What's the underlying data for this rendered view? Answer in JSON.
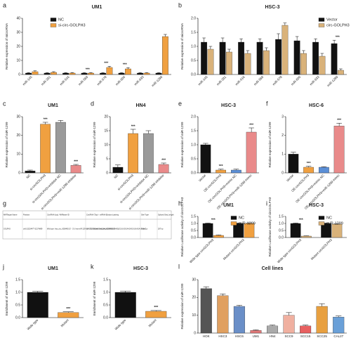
{
  "chart_data": [
    {
      "type": "bar",
      "panel": "a",
      "title": "UM1",
      "ylabel": "Relative  expression of microRNA",
      "categories": [
        "miR-145",
        "miR-331",
        "miR-516",
        "miR-569",
        "miR-578",
        "miR-600",
        "miR-633",
        "miR-1299"
      ],
      "series": [
        {
          "name": "NC",
          "color": "#111111",
          "values": [
            1,
            1,
            1,
            1,
            1,
            1,
            1,
            1
          ],
          "errors": [
            0.3,
            0.3,
            0.3,
            0.3,
            0.3,
            0.3,
            0.3,
            0.3
          ]
        },
        {
          "name": "si-circ-GOLPH3",
          "color": "#f0a040",
          "values": [
            2,
            1.5,
            1,
            1,
            5,
            4,
            1,
            27
          ],
          "errors": [
            0.6,
            0.5,
            0.4,
            0.3,
            0.8,
            0.9,
            0.3,
            1.5
          ]
        }
      ],
      "significance": [
        null,
        null,
        null,
        "***",
        "***",
        "***",
        null,
        null
      ],
      "ylim": [
        0,
        40
      ],
      "yticks": [
        0,
        10,
        20,
        30,
        40
      ],
      "legend": "top-left"
    },
    {
      "type": "bar",
      "panel": "b",
      "title": "HSC-3",
      "ylabel": "Relative  expression of microRNA",
      "categories": [
        "miR-145",
        "miR-331",
        "miR-516",
        "miR-569",
        "miR-578",
        "miR-600",
        "miR-633",
        "miR-1299"
      ],
      "series": [
        {
          "name": "Vector",
          "color": "#111111",
          "values": [
            1.15,
            1.15,
            1.15,
            1.15,
            1.25,
            1.2,
            1.15,
            1.1
          ],
          "errors": [
            0.15,
            0.15,
            0.12,
            0.12,
            0.2,
            0.15,
            0.12,
            0.12
          ]
        },
        {
          "name": "circ-GOLPH3",
          "color": "#d9b27a",
          "values": [
            0.9,
            0.8,
            0.75,
            0.85,
            1.75,
            0.75,
            0.65,
            0.15
          ],
          "errors": [
            0.1,
            0.1,
            0.1,
            0.1,
            0.08,
            0.1,
            0.1,
            0.05
          ]
        }
      ],
      "significance": [
        null,
        null,
        null,
        null,
        null,
        null,
        null,
        "***"
      ],
      "ylim": [
        0,
        2.0
      ],
      "yticks": [
        {
          "value": 0,
          "label": "0.0"
        },
        0.5,
        {
          "value": 1,
          "label": "1.0"
        },
        1.5,
        {
          "value": 2,
          "label": "2.0"
        }
      ],
      "legend": "top-right"
    },
    {
      "type": "bar",
      "panel": "c",
      "title": "UM1",
      "ylabel": "Relative  expression of miR-1299",
      "categories": [
        "NC",
        "si-circGOLPH3",
        "si-circGOLPH3+inhibitor NC",
        "si-circGOLPH3+miR-1299 inhibitor"
      ],
      "series": [
        {
          "colors": [
            "#111111",
            "#f0a040",
            "#9a9a9a",
            "#e98a8a"
          ],
          "values": [
            1,
            26,
            27,
            4
          ],
          "errors": [
            0.5,
            1,
            1,
            0.5
          ]
        }
      ],
      "significance": [
        null,
        "***",
        null,
        "***"
      ],
      "ylim": [
        0,
        30
      ],
      "yticks": [
        0,
        10,
        20,
        30
      ]
    },
    {
      "type": "bar",
      "panel": "d",
      "title": "HN4",
      "ylabel": "Relative  expression of miR-1299",
      "categories": [
        "NC",
        "si-circGOLPH3",
        "si-circGOLPH3+inhibitor NC",
        "si-circGOLPH3+miR-1299 inhibitor"
      ],
      "series": [
        {
          "colors": [
            "#111111",
            "#f0a040",
            "#9a9a9a",
            "#e98a8a"
          ],
          "values": [
            2,
            14,
            14,
            3
          ],
          "errors": [
            0.8,
            1.5,
            1,
            0.5
          ]
        }
      ],
      "significance": [
        null,
        "***",
        null,
        "***"
      ],
      "ylim": [
        0,
        20
      ],
      "yticks": [
        0,
        5,
        10,
        15,
        20
      ]
    },
    {
      "type": "bar",
      "panel": "e",
      "title": "HSC-3",
      "ylabel": "Relative  expression of miR-1299",
      "categories": [
        "Vector",
        "OE-circGOLPH3",
        "OE-circGOLPH3+mimic NC",
        "OE-circGOLPH3+miR-1299 mimic"
      ],
      "series": [
        {
          "colors": [
            "#111111",
            "#f0a040",
            "#5b8fd6",
            "#e98a8a"
          ],
          "values": [
            1,
            0.1,
            0.1,
            1.45
          ],
          "errors": [
            0.05,
            0.03,
            0.03,
            0.15
          ]
        }
      ],
      "significance": [
        null,
        "***",
        null,
        "***"
      ],
      "ylim": [
        0,
        2.0
      ],
      "yticks": [
        {
          "value": 0,
          "label": "0.0"
        },
        0.5,
        {
          "value": 1,
          "label": "1.0"
        },
        1.5,
        {
          "value": 2,
          "label": "2.0"
        }
      ]
    },
    {
      "type": "bar",
      "panel": "f",
      "title": "HSC-6",
      "ylabel": "Relative  expression of miR-1299",
      "categories": [
        "Vector",
        "OE-circGOLPH3",
        "OE-circGOLPH3+mimic NC",
        "OE-circGOLPH3+miR-1299 mimic"
      ],
      "series": [
        {
          "colors": [
            "#111111",
            "#f0a040",
            "#5b8fd6",
            "#e98a8a"
          ],
          "values": [
            1,
            0.3,
            0.3,
            2.5
          ],
          "errors": [
            0.1,
            0.05,
            0.03,
            0.15
          ]
        }
      ],
      "significance": [
        null,
        "***",
        null,
        "***"
      ],
      "ylim": [
        0,
        3
      ],
      "yticks": [
        0,
        1,
        2,
        3
      ]
    },
    {
      "type": "bar",
      "panel": "h",
      "title": "UM1",
      "ylabel": "Relative Luciferase activity of circGOLPH3",
      "categories": [
        "Wide type circGOLPH3",
        "Mutant circGOLPH3"
      ],
      "series": [
        {
          "name": "NC",
          "color": "#111111",
          "values": [
            1,
            1
          ],
          "errors": [
            0.03,
            0.03
          ]
        },
        {
          "name": "miR-1299",
          "color": "#f0a040",
          "values": [
            0.15,
            1
          ],
          "errors": [
            0.03,
            0.03
          ]
        }
      ],
      "significance": [
        "***",
        null
      ],
      "ylim": [
        0,
        1.5
      ],
      "yticks": [
        {
          "value": 0,
          "label": "0.0"
        },
        0.5,
        {
          "value": 1,
          "label": "1.0"
        },
        1.5
      ],
      "legend": "top-right"
    },
    {
      "type": "bar",
      "panel": "i",
      "title": "HSC-3",
      "ylabel": "Relative Luciferase activity of circGOLPH3",
      "categories": [
        "Wide type circGOLPH3",
        "Mutant circGOLPH3"
      ],
      "series": [
        {
          "name": "NC",
          "color": "#111111",
          "values": [
            1,
            1
          ],
          "errors": [
            0.03,
            0.03
          ]
        },
        {
          "name": "miR-1299",
          "color": "#d9b27a",
          "values": [
            0.1,
            0.95
          ],
          "errors": [
            0.02,
            0.03
          ]
        }
      ],
      "significance": [
        "***",
        null
      ],
      "ylim": [
        0,
        1.5
      ],
      "yticks": [
        {
          "value": 0,
          "label": "0.0"
        },
        0.5,
        {
          "value": 1,
          "label": "1.0"
        },
        1.5
      ],
      "legend": "top-right"
    },
    {
      "type": "bar",
      "panel": "j",
      "title": "UM1",
      "ylabel": "Enrichment of miR-1299",
      "categories": [
        "Wide type",
        "Mutant"
      ],
      "series": [
        {
          "colors": [
            "#111111",
            "#f0a040"
          ],
          "values": [
            1.0,
            0.2
          ],
          "errors": [
            0.04,
            0.03
          ]
        }
      ],
      "significance": [
        null,
        "***"
      ],
      "ylim": [
        0,
        1.5
      ],
      "yticks": [
        {
          "value": 0,
          "label": "0.0"
        },
        0.5,
        {
          "value": 1,
          "label": "1.0"
        },
        1.5
      ]
    },
    {
      "type": "bar",
      "panel": "k",
      "title": "HSC-3",
      "ylabel": "Enrichment of miR-1299",
      "categories": [
        "Wide type",
        "Mutant"
      ],
      "series": [
        {
          "colors": [
            "#111111",
            "#f0a040"
          ],
          "values": [
            1.0,
            0.25
          ],
          "errors": [
            0.05,
            0.03
          ]
        }
      ],
      "significance": [
        null,
        "***"
      ],
      "ylim": [
        0,
        1.5
      ],
      "yticks": [
        {
          "value": 0,
          "label": "0.0"
        },
        0.5,
        {
          "value": 1,
          "label": "1.0"
        },
        1.5
      ]
    },
    {
      "type": "bar",
      "panel": "l",
      "title": "Cell lines",
      "ylabel": "Relative expression of miR-1299",
      "categories": [
        "HOK",
        "HSC3",
        "HSC6",
        "UM1",
        "HN4",
        "SCC9",
        "SCC15",
        "SCC25",
        "CAL27"
      ],
      "series": [
        {
          "colors": [
            "#555555",
            "#e0a060",
            "#6a8fc8",
            "#e07878",
            "#aaaaaa",
            "#f0b0a0",
            "#e86060",
            "#e8a040",
            "#6aa0d8"
          ],
          "values": [
            25,
            21,
            15,
            1.5,
            4,
            10,
            4,
            15,
            9
          ],
          "errors": [
            1,
            1,
            0.6,
            0.3,
            0.5,
            1.5,
            0.5,
            1.5,
            0.6
          ]
        }
      ],
      "significance": [
        null,
        null,
        null,
        null,
        null,
        null,
        null,
        null,
        null
      ],
      "ylim": [
        0,
        30
      ],
      "yticks": [
        0,
        10,
        20,
        30
      ]
    }
  ],
  "table": {
    "panel": "g",
    "headers": [
      "MiRTarget Name",
      "Position",
      "CircRNA (top) / MiRbase ID",
      "CircRNA (Top) - miRNA (Bottom) pairing",
      "Site Type",
      "Spliced Seq Length"
    ],
    "row": [
      "GOLPH3",
      "chr5:32154477-32174899",
      "Wild type: hsa_circ_0008465 (5' - 3') / hsa-miR-1299 (3' - 5') / Mutant: hsa_circ_0008465 (5' - 3')",
      "AAGGGCUGAGGAGGAUACAGUUGAA / UCUUUGGAAGAGUUUAGAAGGUC",
      "7mer-1a",
      "287 bp"
    ]
  }
}
